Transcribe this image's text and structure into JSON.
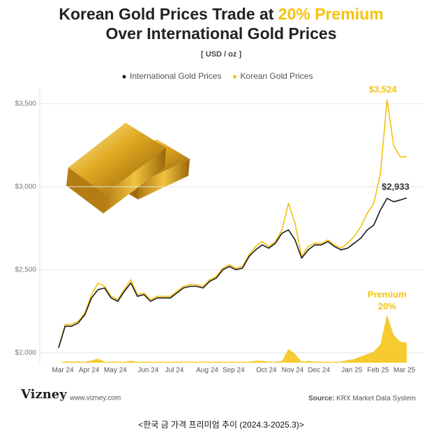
{
  "chart_data": {
    "type": "line",
    "title_part1": "Korean Gold Prices Trade at ",
    "title_highlight": "20% Premium",
    "title_line2": "Over International Gold Prices",
    "subtitle": "[ USD / oz ]",
    "categories": [
      "Mar 24",
      null,
      null,
      null,
      "Apr 24",
      null,
      null,
      null,
      "May 24",
      null,
      null,
      null,
      null,
      "Jun 24",
      null,
      null,
      null,
      "Jul 24",
      null,
      null,
      null,
      null,
      "Aug 24",
      null,
      null,
      null,
      "Sep 24",
      null,
      null,
      null,
      null,
      "Oct 24",
      null,
      null,
      null,
      "Nov 24",
      null,
      null,
      null,
      "Dec 24",
      null,
      null,
      null,
      null,
      "Jan 25",
      null,
      null,
      null,
      "Feb 25",
      null,
      null,
      null,
      "Mar 25",
      null
    ],
    "series": [
      {
        "name": "International Gold Prices",
        "color": "#1a1a1a",
        "values": [
          2030,
          2160,
          2160,
          2180,
          2230,
          2330,
          2380,
          2390,
          2330,
          2310,
          2370,
          2420,
          2340,
          2350,
          2310,
          2330,
          2330,
          2330,
          2360,
          2390,
          2400,
          2400,
          2390,
          2430,
          2450,
          2500,
          2520,
          2500,
          2510,
          2580,
          2620,
          2650,
          2630,
          2660,
          2720,
          2740,
          2680,
          2570,
          2620,
          2650,
          2650,
          2670,
          2640,
          2620,
          2630,
          2660,
          2690,
          2740,
          2770,
          2860,
          2930,
          2910,
          2920,
          2933
        ]
      },
      {
        "name": "Korean Gold Prices",
        "color": "#f4c20d",
        "values": [
          2030,
          2170,
          2170,
          2190,
          2240,
          2350,
          2420,
          2400,
          2340,
          2320,
          2380,
          2440,
          2350,
          2360,
          2320,
          2340,
          2340,
          2340,
          2370,
          2400,
          2410,
          2410,
          2400,
          2440,
          2460,
          2510,
          2530,
          2510,
          2520,
          2590,
          2640,
          2670,
          2640,
          2670,
          2740,
          2900,
          2780,
          2580,
          2640,
          2660,
          2660,
          2680,
          2650,
          2630,
          2660,
          2700,
          2760,
          2840,
          2900,
          3080,
          3524,
          3250,
          3180,
          3180
        ]
      }
    ],
    "premium": {
      "color": "#f4c20d",
      "axis": "y2",
      "values": [
        0,
        0.5,
        0.5,
        0.5,
        0.4,
        0.9,
        1.7,
        0.4,
        0.4,
        0.4,
        0.4,
        0.8,
        0.4,
        0.4,
        0.4,
        0.4,
        0.4,
        0.4,
        0.4,
        0.4,
        0.4,
        0.4,
        0.4,
        0.4,
        0.4,
        0.4,
        0.4,
        0.4,
        0.4,
        0.4,
        0.8,
        0.8,
        0.4,
        0.4,
        0.7,
        5.8,
        3.7,
        0.4,
        0.8,
        0.4,
        0.4,
        0.4,
        0.4,
        0.4,
        1.1,
        1.5,
        2.6,
        3.6,
        4.7,
        7.7,
        20.3,
        11.7,
        8.9,
        8.4
      ]
    },
    "ylim": [
      1940,
      3600
    ],
    "yticks": [
      {
        "value": 2000,
        "label": "$2,000"
      },
      {
        "value": 2500,
        "label": "$2,500"
      },
      {
        "value": 3000,
        "label": "$3,000"
      },
      {
        "value": 3500,
        "label": "$3,500"
      }
    ],
    "y2lim": [
      0,
      116
    ],
    "grid": true,
    "legend": "top",
    "peak_label": "$3,524",
    "last_label": "$2,933",
    "premium_label": "Premium",
    "premium_value_label": "20%",
    "brand": "Vizney",
    "website": "www.vizney.com",
    "source_label": "Source:",
    "source_text": "KRX Market Data System",
    "caption": "<한국 금 가격 프리미엄 추이 (2024.3-2025.3)>"
  }
}
